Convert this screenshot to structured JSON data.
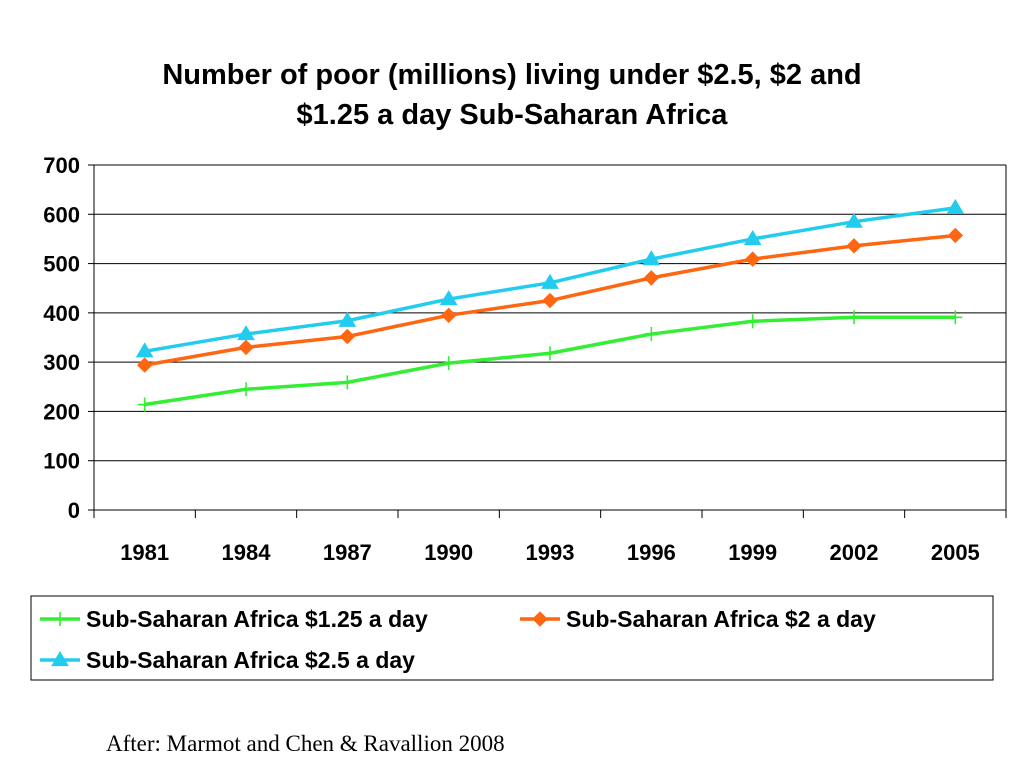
{
  "chart_data": {
    "type": "line",
    "title": "Number of poor (millions) living under $2.5, $2 and $1.25 a day Sub-Saharan Africa",
    "title_lines": [
      "Number of poor (millions) living under $2.5, $2 and",
      "$1.25 a day Sub-Saharan Africa"
    ],
    "xlabel": "",
    "ylabel": "",
    "x": [
      "1981",
      "1984",
      "1987",
      "1990",
      "1993",
      "1996",
      "1999",
      "2002",
      "2005"
    ],
    "y_ticks": [
      "0",
      "100",
      "200",
      "300",
      "400",
      "500",
      "600",
      "700"
    ],
    "ylim": [
      0,
      700
    ],
    "grid": true,
    "legend_position": "bottom",
    "series": [
      {
        "name": "Sub-Saharan Africa $1.25 a day",
        "values": [
          214,
          245,
          259,
          298,
          318,
          357,
          383,
          391,
          391
        ],
        "color": "#33ee33",
        "marker": "plus"
      },
      {
        "name": "Sub-Saharan Africa $2 a day",
        "values": [
          294,
          330,
          352,
          395,
          425,
          471,
          509,
          536,
          557
        ],
        "color": "#ff6611",
        "marker": "diamond"
      },
      {
        "name": "Sub-Saharan Africa $2.5 a day",
        "values": [
          322,
          357,
          384,
          428,
          461,
          509,
          550,
          585,
          613
        ],
        "color": "#22ccee",
        "marker": "triangle"
      }
    ]
  },
  "caption": "After: Marmot and Chen & Ravallion 2008"
}
